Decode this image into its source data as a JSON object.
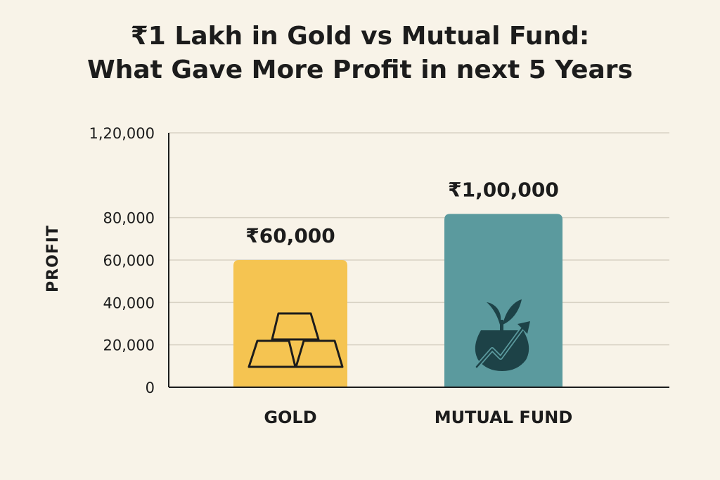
{
  "chart_data": {
    "type": "bar",
    "title": "₹1 Lakh in Gold vs Mutual Fund:",
    "subtitle": "What Gave More Profit in next 5 Years",
    "xlabel": "",
    "ylabel": "PROFIT",
    "categories": [
      "GOLD",
      "MUTUAL FUND"
    ],
    "values": [
      60000,
      100000
    ],
    "value_labels": [
      "₹60,000",
      "₹1,00,000"
    ],
    "ylim": [
      0,
      120000
    ],
    "yticks": [
      0,
      20000,
      40000,
      60000,
      80000,
      120000
    ],
    "ytick_labels": [
      "0",
      "20,000",
      "40,000",
      "60,000",
      "80,000",
      "1,20,000"
    ],
    "grid": true,
    "colors": [
      "#f5c451",
      "#5b9a9e"
    ],
    "icons": [
      "gold-bars-icon",
      "money-pot-growth-icon"
    ]
  }
}
